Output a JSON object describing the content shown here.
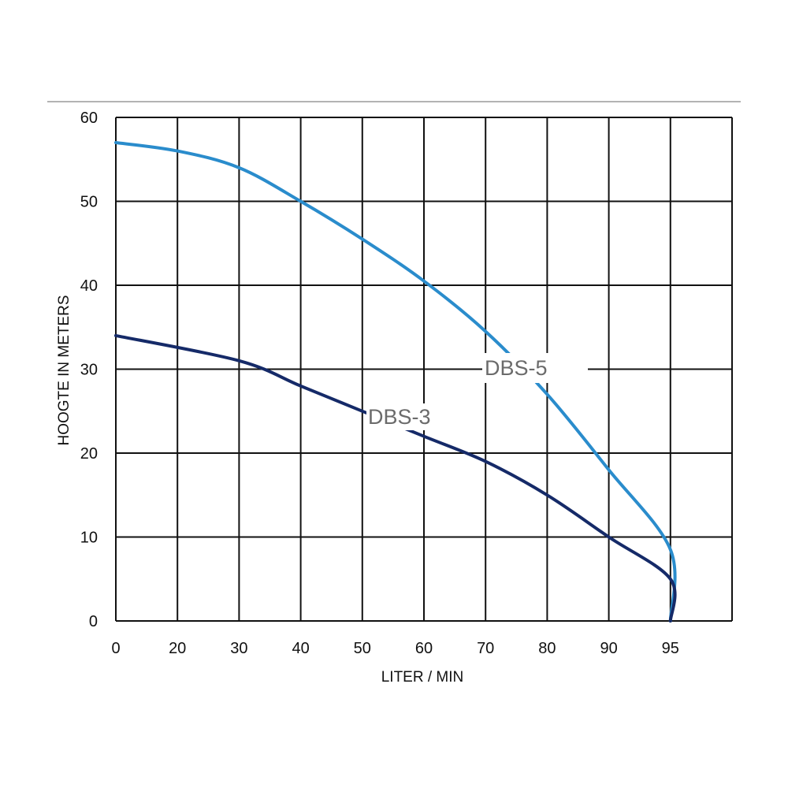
{
  "chart_data": {
    "type": "line",
    "xlabel": "LITER / MIN",
    "ylabel": "HOOGTE IN METERS",
    "x_ticks": [
      0,
      20,
      30,
      40,
      50,
      60,
      70,
      80,
      90,
      95
    ],
    "y_ticks": [
      0,
      10,
      20,
      30,
      40,
      50,
      60
    ],
    "ylim": [
      0,
      60
    ],
    "grid": true,
    "legend": "inline labels",
    "series": [
      {
        "name": "DBS-5",
        "color": "#2a8ccc",
        "x": [
          0,
          10,
          20,
          30,
          40,
          50,
          60,
          70,
          80,
          90,
          95
        ],
        "y": [
          57,
          56,
          54,
          50,
          45.5,
          40.5,
          34.5,
          27,
          18,
          8.5,
          0
        ]
      },
      {
        "name": "DBS-3",
        "color": "#152a68",
        "x": [
          0,
          20,
          30,
          40,
          50,
          60,
          70,
          80,
          90,
          95
        ],
        "y": [
          34,
          31,
          28,
          25,
          22,
          19,
          15,
          10,
          5,
          0
        ]
      }
    ]
  }
}
